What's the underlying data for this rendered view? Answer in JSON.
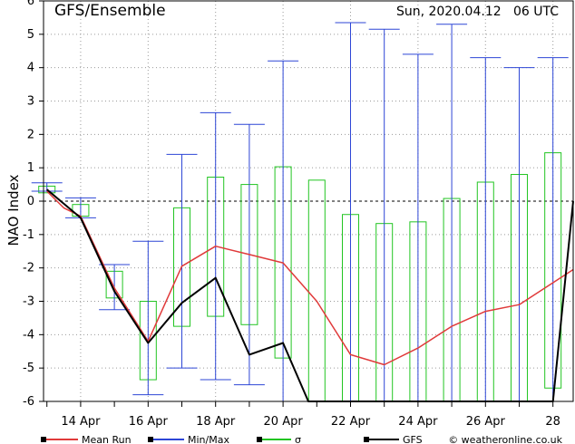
{
  "header": {
    "title": "GFS/Ensemble",
    "run_date": "Sun, 2020.04.12   06 UTC"
  },
  "legend": {
    "items": [
      {
        "label": "Mean Run",
        "color": "#e03a3a"
      },
      {
        "label": "Min/Max",
        "color": "#2d46d6"
      },
      {
        "label": "σ",
        "color": "#22c522"
      },
      {
        "label": "GFS",
        "color": "#000000"
      }
    ],
    "credit": "© weatheronline.co.uk"
  },
  "chart_data": {
    "type": "line",
    "ylabel": "NAO Index",
    "ylim": [
      -6,
      6
    ],
    "yticks": [
      -6,
      -5,
      -4,
      -3,
      -2,
      -1,
      0,
      1,
      2,
      3,
      4,
      5,
      6
    ],
    "xlim": [
      12.9,
      28.6
    ],
    "xticks": [
      {
        "x": 14,
        "label": "14 Apr"
      },
      {
        "x": 16,
        "label": "16 Apr"
      },
      {
        "x": 18,
        "label": "18 Apr"
      },
      {
        "x": 20,
        "label": "20 Apr"
      },
      {
        "x": 22,
        "label": "22 Apr"
      },
      {
        "x": 24,
        "label": "24 Apr"
      },
      {
        "x": 26,
        "label": "26 Apr"
      },
      {
        "x": 28,
        "label": "28"
      }
    ],
    "grid": true,
    "series": [
      {
        "name": "Mean Run",
        "color": "#e03a3a",
        "points": [
          [
            13,
            0.3
          ],
          [
            13.5,
            -0.2
          ],
          [
            14,
            -0.45
          ],
          [
            15,
            -2.6
          ],
          [
            16,
            -4.2
          ],
          [
            17,
            -1.95
          ],
          [
            18,
            -1.35
          ],
          [
            19,
            -1.6
          ],
          [
            20,
            -1.85
          ],
          [
            21,
            -3.0
          ],
          [
            22,
            -4.6
          ],
          [
            23,
            -4.9
          ],
          [
            24,
            -4.4
          ],
          [
            25,
            -3.75
          ],
          [
            26,
            -3.3
          ],
          [
            27,
            -3.1
          ],
          [
            28.6,
            -2.05
          ]
        ]
      },
      {
        "name": "GFS",
        "color": "#000000",
        "points": [
          [
            13,
            0.35
          ],
          [
            14,
            -0.5
          ],
          [
            15,
            -2.7
          ],
          [
            16,
            -4.25
          ],
          [
            17,
            -3.05
          ],
          [
            18,
            -2.3
          ],
          [
            19,
            -4.6
          ],
          [
            20,
            -4.25
          ],
          [
            20.75,
            -6.0
          ],
          [
            28,
            -6.0
          ],
          [
            28.6,
            0.0
          ]
        ]
      }
    ],
    "minmax": {
      "name": "Min/Max",
      "color": "#2d46d6",
      "bars": [
        {
          "x": 13,
          "min": 0.3,
          "max": 0.55
        },
        {
          "x": 14,
          "min": -0.5,
          "max": 0.1
        },
        {
          "x": 15,
          "min": -3.25,
          "max": -1.9
        },
        {
          "x": 16,
          "min": -5.8,
          "max": -1.2
        },
        {
          "x": 17,
          "min": -5.0,
          "max": 1.4
        },
        {
          "x": 18,
          "min": -5.35,
          "max": 2.65
        },
        {
          "x": 19,
          "min": -5.5,
          "max": 2.3
        },
        {
          "x": 20,
          "min": -6.0,
          "max": 4.2
        },
        {
          "x": 22,
          "min": -6.0,
          "max": 5.35
        },
        {
          "x": 23,
          "min": -6.0,
          "max": 5.15
        },
        {
          "x": 24,
          "min": -6.0,
          "max": 4.4
        },
        {
          "x": 25,
          "min": -6.0,
          "max": 5.3
        },
        {
          "x": 26,
          "min": -6.0,
          "max": 4.3
        },
        {
          "x": 27,
          "min": -6.0,
          "max": 4.0
        },
        {
          "x": 28,
          "min": -6.0,
          "max": 4.3
        }
      ]
    },
    "sigma": {
      "name": "σ",
      "color": "#22c522",
      "boxes": [
        {
          "x": 13,
          "low": 0.25,
          "high": 0.45
        },
        {
          "x": 14,
          "low": -0.45,
          "high": -0.1
        },
        {
          "x": 15,
          "low": -2.9,
          "high": -2.1
        },
        {
          "x": 16,
          "low": -5.35,
          "high": -3.0
        },
        {
          "x": 17,
          "low": -3.75,
          "high": -0.2
        },
        {
          "x": 18,
          "low": -3.45,
          "high": 0.72
        },
        {
          "x": 19,
          "low": -3.7,
          "high": 0.5
        },
        {
          "x": 20,
          "low": -4.7,
          "high": 1.03
        },
        {
          "x": 21,
          "low": -6.0,
          "high": 0.63
        },
        {
          "x": 22,
          "low": -6.0,
          "high": -0.4
        },
        {
          "x": 23,
          "low": -6.0,
          "high": -0.67
        },
        {
          "x": 24,
          "low": -6.0,
          "high": -0.62
        },
        {
          "x": 25,
          "low": -6.0,
          "high": 0.08
        },
        {
          "x": 26,
          "low": -6.0,
          "high": 0.57
        },
        {
          "x": 27,
          "low": -6.0,
          "high": 0.8
        },
        {
          "x": 28,
          "low": -5.6,
          "high": 1.45
        }
      ]
    }
  }
}
